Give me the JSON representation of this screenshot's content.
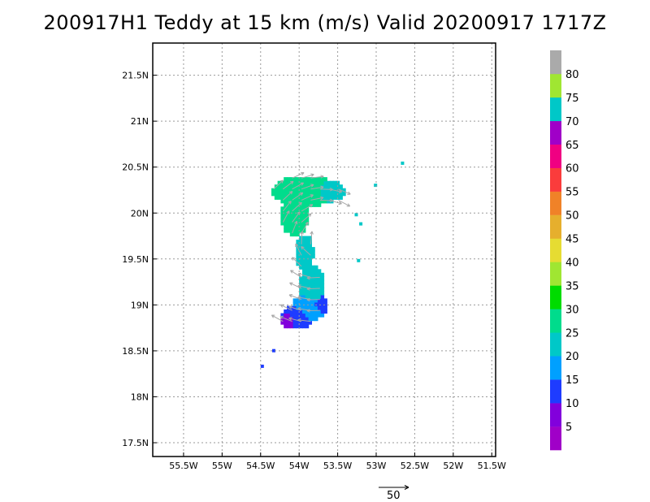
{
  "title": "200917H1 Teddy at 15 km (m/s) Valid 20200917 1717Z",
  "map": {
    "lon_range": [
      -55.9,
      -51.45
    ],
    "lat_range": [
      17.35,
      21.85
    ],
    "lon_ticks": [
      {
        "value": -55.5,
        "label": "55.5W"
      },
      {
        "value": -55.0,
        "label": "55W"
      },
      {
        "value": -54.5,
        "label": "54.5W"
      },
      {
        "value": -54.0,
        "label": "54W"
      },
      {
        "value": -53.5,
        "label": "53.5W"
      },
      {
        "value": -53.0,
        "label": "53W"
      },
      {
        "value": -52.5,
        "label": "52.5W"
      },
      {
        "value": -52.0,
        "label": "52W"
      },
      {
        "value": -51.5,
        "label": "51.5W"
      }
    ],
    "lat_ticks": [
      {
        "value": 17.5,
        "label": "17.5N"
      },
      {
        "value": 18.0,
        "label": "18N"
      },
      {
        "value": 18.5,
        "label": "18.5N"
      },
      {
        "value": 19.0,
        "label": "19N"
      },
      {
        "value": 19.5,
        "label": "19.5N"
      },
      {
        "value": 20.0,
        "label": "20N"
      },
      {
        "value": 20.5,
        "label": "20.5N"
      },
      {
        "value": 21.0,
        "label": "21N"
      },
      {
        "value": 21.5,
        "label": "21.5N"
      }
    ],
    "grid": true
  },
  "colorbar": {
    "labels": [
      "5",
      "10",
      "15",
      "20",
      "25",
      "30",
      "35",
      "40",
      "45",
      "50",
      "55",
      "60",
      "65",
      "70",
      "75",
      "80"
    ],
    "colors": [
      "#a000c8",
      "#8200dc",
      "#1e3cff",
      "#00a0ff",
      "#00c8c8",
      "#00dc8c",
      "#00dc00",
      "#a0e632",
      "#e6dc32",
      "#e6af2d",
      "#f08228",
      "#fa3c3c",
      "#f00082",
      "#a000c8",
      "#00c8c8",
      "#a0e632",
      "#aaaaaa"
    ]
  },
  "reference_vector": {
    "label": "50"
  },
  "chart_data": {
    "type": "heatmap",
    "title": "200917H1 Teddy at 15 km (m/s) Valid 20200917 1717Z",
    "x_range": [
      -55.9,
      -51.45
    ],
    "y_range": [
      17.35,
      21.85
    ],
    "blobs": [
      {
        "lon": -53.95,
        "lat": 20.22,
        "rx": 0.42,
        "ry": 0.17,
        "value": 25
      },
      {
        "lon": -53.65,
        "lat": 20.22,
        "rx": 0.22,
        "ry": 0.12,
        "value": 20
      },
      {
        "lon": -54.08,
        "lat": 19.95,
        "rx": 0.18,
        "ry": 0.22,
        "value": 25
      },
      {
        "lon": -53.95,
        "lat": 19.55,
        "rx": 0.12,
        "ry": 0.2,
        "value": 20
      },
      {
        "lon": -53.85,
        "lat": 19.2,
        "rx": 0.17,
        "ry": 0.22,
        "value": 20
      },
      {
        "lon": -53.9,
        "lat": 18.95,
        "rx": 0.22,
        "ry": 0.15,
        "value": 15
      },
      {
        "lon": -54.05,
        "lat": 18.85,
        "rx": 0.2,
        "ry": 0.14,
        "value": 10
      },
      {
        "lon": -54.15,
        "lat": 18.82,
        "rx": 0.1,
        "ry": 0.1,
        "value": 5
      },
      {
        "lon": -53.75,
        "lat": 18.98,
        "rx": 0.1,
        "ry": 0.1,
        "value": 10
      }
    ],
    "scattered_pixels": [
      {
        "lon": -52.68,
        "lat": 20.56,
        "value": 20
      },
      {
        "lon": -53.03,
        "lat": 20.32,
        "value": 20
      },
      {
        "lon": -53.28,
        "lat": 20.0,
        "value": 20
      },
      {
        "lon": -53.22,
        "lat": 19.9,
        "value": 20
      },
      {
        "lon": -53.25,
        "lat": 19.5,
        "value": 20
      },
      {
        "lon": -54.35,
        "lat": 18.52,
        "value": 10
      },
      {
        "lon": -54.5,
        "lat": 18.35,
        "value": 10
      }
    ]
  }
}
